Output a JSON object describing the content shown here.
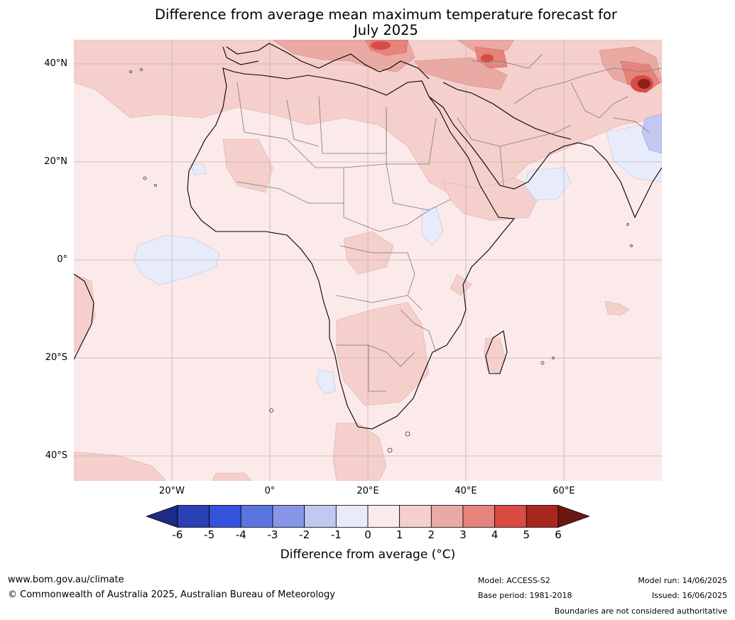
{
  "title_line1": "Difference from average mean maximum temperature forecast for",
  "title_line2": "July 2025",
  "lat_labels": [
    "40°N",
    "20°N",
    "0°",
    "20°S",
    "40°S"
  ],
  "lon_labels": [
    "20°W",
    "0°",
    "20°E",
    "40°E",
    "60°E"
  ],
  "colorbar": {
    "ticks": [
      "-6",
      "-5",
      "-4",
      "-3",
      "-2",
      "-1",
      "0",
      "1",
      "2",
      "3",
      "4",
      "5",
      "6"
    ],
    "label": "Difference from average (°C)",
    "colors": [
      "#1c2b85",
      "#2b40b5",
      "#3452dc",
      "#5b75e0",
      "#8597e6",
      "#c1c8f1",
      "#e8ecfa",
      "#fbeae9",
      "#f4cfcb",
      "#eba9a4",
      "#e5837c",
      "#d94c43",
      "#a8281f",
      "#6b1812"
    ]
  },
  "footer": {
    "url": "www.bom.gov.au/climate",
    "copyright": "© Commonwealth of Australia 2025, Australian Bureau of Meteorology",
    "model": "Model: ACCESS-S2",
    "base_period": "Base period: 1981-2018",
    "model_run": "Model run: 14/06/2025",
    "issued": "Issued: 16/06/2025",
    "disclaimer": "Boundaries are not considered authoritative"
  }
}
